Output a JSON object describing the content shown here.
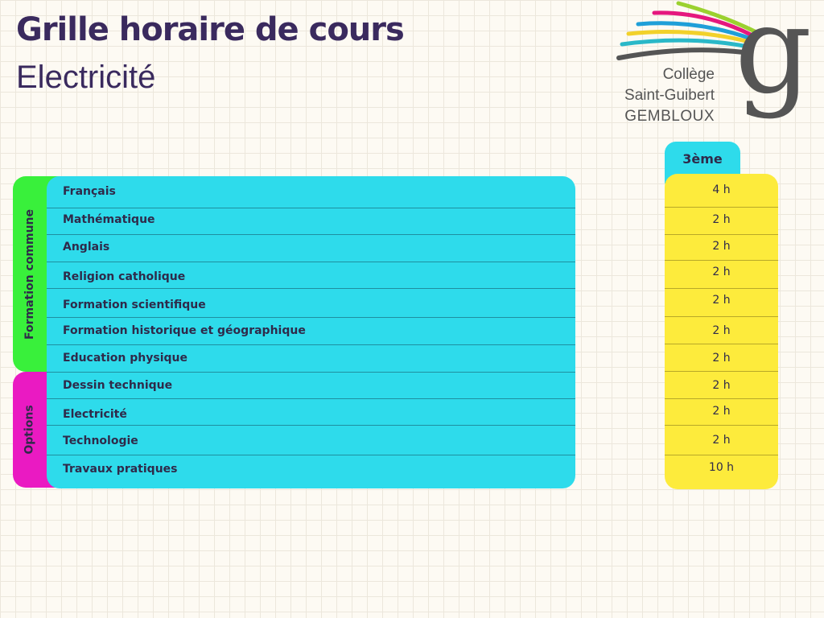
{
  "header": {
    "title": "Grille horaire de cours",
    "subtitle": "Electricité"
  },
  "logo": {
    "line1": "Collège",
    "line2": "Saint-Guibert",
    "line3": "GEMBLOUX",
    "glyph": "g",
    "stripe_colors": [
      "#9bd12f",
      "#e5177e",
      "#1f9fd8",
      "#f2d12a",
      "#2ab8c8",
      "#555555"
    ]
  },
  "groups": {
    "common": "Formation commune",
    "options": "Options"
  },
  "year": "3ème",
  "subjects": [
    {
      "name": "Français",
      "hours": "4 h"
    },
    {
      "name": "Mathématique",
      "hours": "2 h"
    },
    {
      "name": "Anglais",
      "hours": "2 h"
    },
    {
      "name": "Religion catholique",
      "hours": "2 h"
    },
    {
      "name": "Formation scientifique",
      "hours": "2 h"
    },
    {
      "name": "Formation historique et géographique",
      "hours": "2 h"
    },
    {
      "name": "Education physique",
      "hours": "2 h"
    },
    {
      "name": "Dessin technique",
      "hours": "2 h"
    },
    {
      "name": "Electricité",
      "hours": "2 h"
    },
    {
      "name": "Technologie",
      "hours": "2 h"
    },
    {
      "name": "Travaux pratiques",
      "hours": "10 h"
    }
  ],
  "colors": {
    "title": "#3a2a5e",
    "subjects_bg": "#2edbeb",
    "hours_bg": "#fdeb3c",
    "common_bg": "#39f03b",
    "options_bg": "#ea1ac2"
  }
}
